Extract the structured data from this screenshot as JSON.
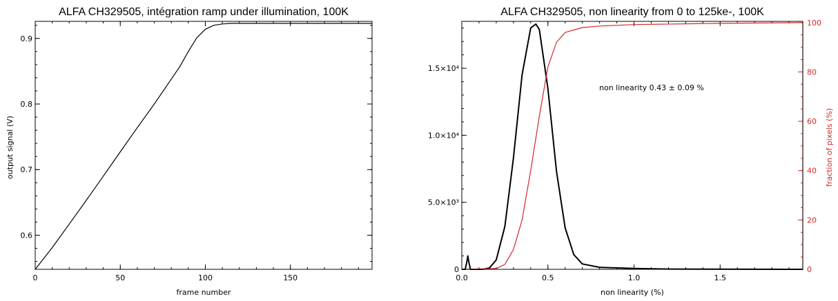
{
  "chart_data": [
    {
      "type": "line",
      "title": "ALFA CH329505, intégration ramp under illumination, 100K",
      "xlabel": "frame number",
      "ylabel": "output signal (V)",
      "xlim": [
        0,
        198
      ],
      "ylim": [
        0.548,
        0.926
      ],
      "xticks": [
        0,
        50,
        100,
        150
      ],
      "xtick_labels": [
        "0",
        "50",
        "100",
        "150"
      ],
      "yticks": [
        0.6,
        0.7,
        0.8,
        0.9
      ],
      "ytick_labels": [
        "0.6",
        "0.7",
        "0.8",
        "0.9"
      ],
      "grid": false,
      "series": [
        {
          "color": "#000000",
          "x": [
            0,
            10,
            20,
            30,
            40,
            50,
            60,
            70,
            80,
            85,
            90,
            95,
            100,
            105,
            110,
            115,
            120,
            130,
            150,
            198
          ],
          "y": [
            0.548,
            0.581,
            0.617,
            0.653,
            0.69,
            0.727,
            0.764,
            0.8,
            0.838,
            0.857,
            0.88,
            0.901,
            0.914,
            0.92,
            0.922,
            0.923,
            0.923,
            0.923,
            0.923,
            0.923
          ]
        }
      ]
    },
    {
      "type": "line",
      "title": "ALFA CH329505, non linearity from 0 to 125ke-, 100K",
      "xlabel": "non linearity (%)",
      "ylabel_right": "fraction of pixels (%)",
      "xlim": [
        0,
        1.98
      ],
      "ylim": [
        0,
        18500
      ],
      "ylim_right": [
        0,
        100.5
      ],
      "xticks": [
        0.0,
        0.5,
        1.0,
        1.5
      ],
      "xtick_labels": [
        "0.0",
        "0.5",
        "1.0",
        "1.5"
      ],
      "yticks": [
        0,
        5000,
        10000,
        15000
      ],
      "ytick_labels": [
        "0",
        "5.0×10³",
        "1.0×10⁴",
        "1.5×10⁴"
      ],
      "yticks_right": [
        0,
        20,
        40,
        60,
        80,
        100
      ],
      "ytick_labels_right": [
        "0",
        "20",
        "40",
        "60",
        "80",
        "100"
      ],
      "grid": false,
      "annotation": "non linearity 0.43 ± 0.09 %",
      "series": [
        {
          "axis": "left",
          "color": "#000000",
          "x": [
            0.0,
            0.02,
            0.03,
            0.035,
            0.04,
            0.05,
            0.08,
            0.12,
            0.16,
            0.2,
            0.25,
            0.3,
            0.35,
            0.4,
            0.43,
            0.45,
            0.5,
            0.55,
            0.6,
            0.65,
            0.7,
            0.8,
            1.0,
            1.2,
            1.98
          ],
          "y": [
            0,
            0,
            600,
            1000,
            600,
            0,
            0,
            0,
            100,
            700,
            3200,
            8300,
            14500,
            18000,
            18300,
            17900,
            13500,
            7300,
            3100,
            1100,
            400,
            150,
            60,
            20,
            0
          ]
        },
        {
          "axis": "right",
          "color": "#d62728",
          "x": [
            0.0,
            0.2,
            0.25,
            0.3,
            0.35,
            0.4,
            0.45,
            0.5,
            0.55,
            0.6,
            0.7,
            0.8,
            1.0,
            1.5,
            1.98
          ],
          "y": [
            0,
            0.3,
            2,
            8,
            20,
            40,
            62,
            82,
            92,
            96,
            98,
            98.6,
            99.2,
            99.7,
            100
          ]
        }
      ]
    }
  ]
}
